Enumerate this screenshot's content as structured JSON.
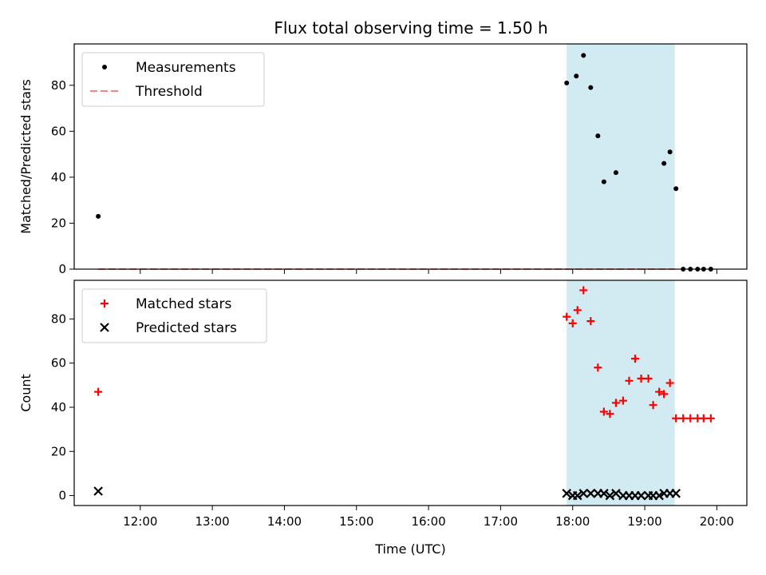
{
  "figure": {
    "title": "Flux total observing time = 1.50 h"
  },
  "chart_data": [
    {
      "type": "scatter",
      "ylabel": "Matched/Predicted stars",
      "xlabel": "",
      "x_axis": "time",
      "xlim": [
        "11:05",
        "20:25"
      ],
      "ylim": [
        0,
        98
      ],
      "yticks": [
        0,
        20,
        40,
        60,
        80
      ],
      "xticks": [
        "12:00",
        "13:00",
        "14:00",
        "15:00",
        "16:00",
        "17:00",
        "18:00",
        "19:00",
        "20:00"
      ],
      "show_xtick_labels": false,
      "grid": false,
      "legend_position": "top-left",
      "highlight_span": [
        "17:55",
        "19:25"
      ],
      "highlight_color": "#add8e6",
      "series": [
        {
          "name": "Measurements",
          "marker": "dot",
          "color": "#000000",
          "points": [
            [
              "11:25",
              23
            ],
            [
              "17:55",
              81
            ],
            [
              "18:03",
              84
            ],
            [
              "18:09",
              93
            ],
            [
              "18:15",
              79
            ],
            [
              "18:21",
              58
            ],
            [
              "18:26",
              38
            ],
            [
              "18:36",
              42
            ],
            [
              "19:16",
              46
            ],
            [
              "19:21",
              51
            ],
            [
              "19:26",
              35
            ],
            [
              "19:32",
              0
            ],
            [
              "19:38",
              0
            ],
            [
              "19:44",
              0
            ],
            [
              "19:49",
              0
            ],
            [
              "19:55",
              0
            ]
          ]
        },
        {
          "name": "Threshold",
          "type": "line",
          "style": "dashed",
          "color": "#ff8080",
          "points": [
            [
              "11:25",
              0
            ],
            [
              "19:25",
              0
            ]
          ]
        }
      ]
    },
    {
      "type": "scatter",
      "ylabel": "Count",
      "xlabel": "Time (UTC)",
      "x_axis": "time",
      "xlim": [
        "11:05",
        "20:25"
      ],
      "ylim": [
        -4.5,
        97.5
      ],
      "yticks": [
        0,
        20,
        40,
        60,
        80
      ],
      "xticks": [
        "12:00",
        "13:00",
        "14:00",
        "15:00",
        "16:00",
        "17:00",
        "18:00",
        "19:00",
        "20:00"
      ],
      "show_xtick_labels": true,
      "grid": false,
      "legend_position": "top-left",
      "highlight_span": [
        "17:55",
        "19:25"
      ],
      "highlight_color": "#add8e6",
      "series": [
        {
          "name": "Matched stars",
          "marker": "plus",
          "color": "#ff0000",
          "points": [
            [
              "11:25",
              47
            ],
            [
              "17:55",
              81
            ],
            [
              "18:00",
              78
            ],
            [
              "18:04",
              84
            ],
            [
              "18:09",
              93
            ],
            [
              "18:15",
              79
            ],
            [
              "18:21",
              58
            ],
            [
              "18:26",
              38
            ],
            [
              "18:31",
              37
            ],
            [
              "18:36",
              42
            ],
            [
              "18:42",
              43
            ],
            [
              "18:47",
              52
            ],
            [
              "18:52",
              62
            ],
            [
              "18:57",
              53
            ],
            [
              "19:03",
              53
            ],
            [
              "19:07",
              41
            ],
            [
              "19:12",
              47
            ],
            [
              "19:16",
              46
            ],
            [
              "19:21",
              51
            ],
            [
              "19:26",
              35
            ],
            [
              "19:32",
              35
            ],
            [
              "19:38",
              35
            ],
            [
              "19:44",
              35
            ],
            [
              "19:49",
              35
            ],
            [
              "19:55",
              35
            ]
          ]
        },
        {
          "name": "Predicted stars",
          "marker": "x",
          "color": "#000000",
          "points": [
            [
              "11:25",
              2
            ],
            [
              "17:55",
              1
            ],
            [
              "18:00",
              0
            ],
            [
              "18:04",
              0
            ],
            [
              "18:09",
              1
            ],
            [
              "18:15",
              1
            ],
            [
              "18:21",
              1
            ],
            [
              "18:26",
              1
            ],
            [
              "18:31",
              0
            ],
            [
              "18:36",
              1
            ],
            [
              "18:42",
              0
            ],
            [
              "18:47",
              0
            ],
            [
              "18:52",
              0
            ],
            [
              "18:57",
              0
            ],
            [
              "19:03",
              0
            ],
            [
              "19:07",
              0
            ],
            [
              "19:12",
              0
            ],
            [
              "19:16",
              1
            ],
            [
              "19:21",
              1
            ],
            [
              "19:26",
              1
            ]
          ]
        }
      ]
    }
  ]
}
